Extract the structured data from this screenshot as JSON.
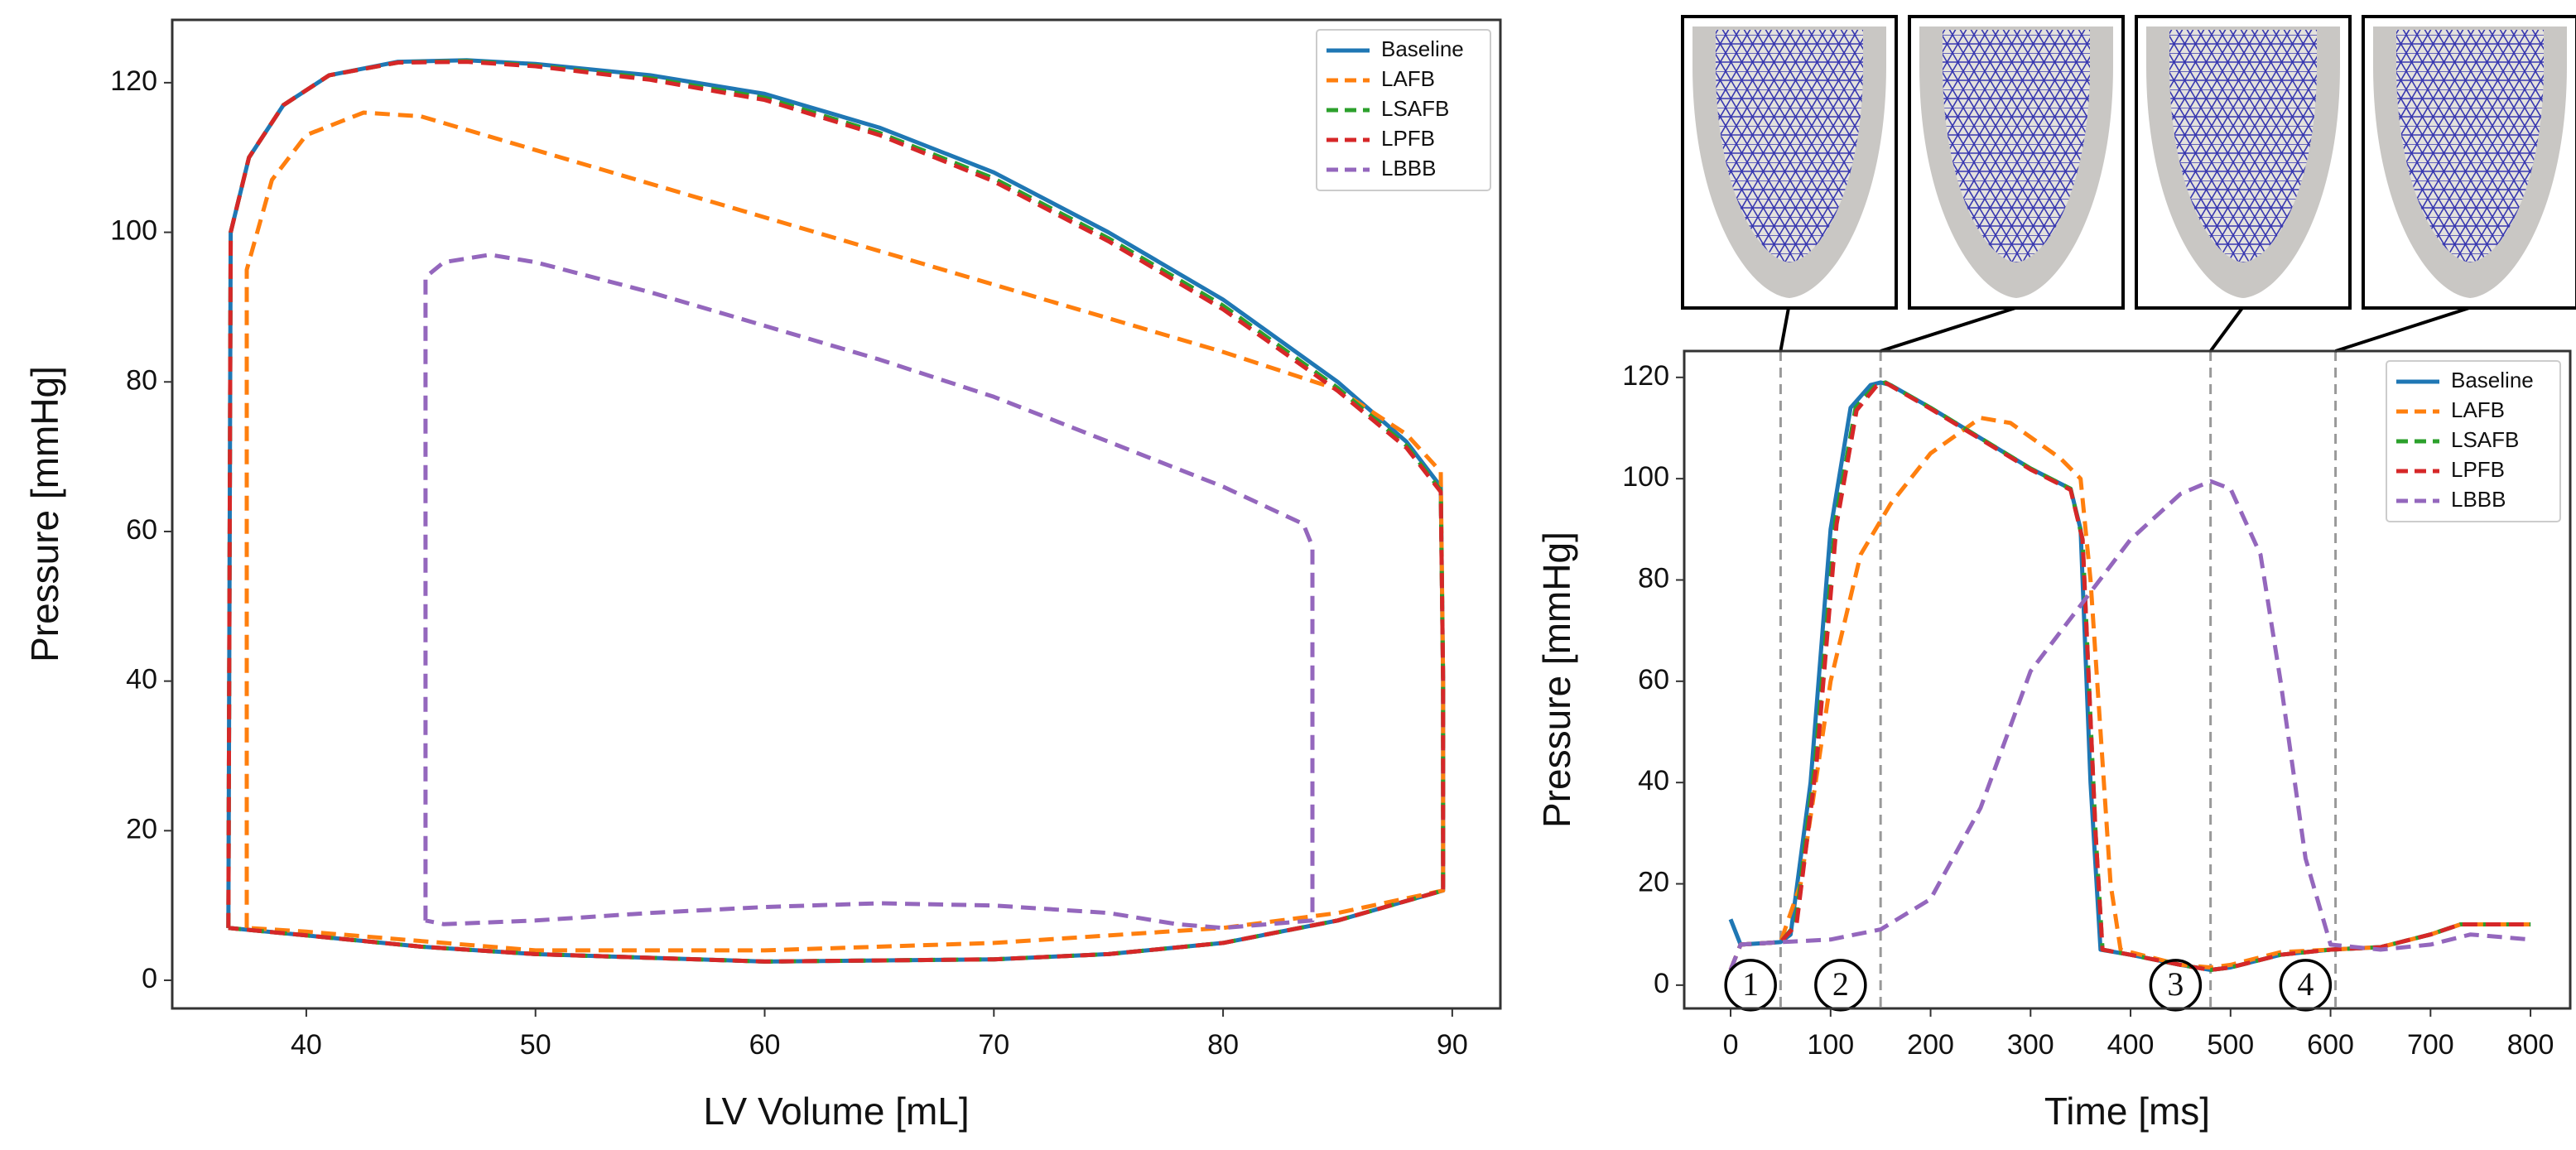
{
  "chart_data": [
    {
      "type": "line",
      "xlabel": "LV Volume [mL]",
      "ylabel": "Pressure [mmHg]",
      "xlim": [
        34.15,
        92.1
      ],
      "ylim": [
        -3.76,
        128.4
      ],
      "xticks": [
        40,
        50,
        60,
        70,
        80,
        90
      ],
      "yticks": [
        0,
        20,
        40,
        60,
        80,
        100,
        120
      ],
      "legend": "upper right",
      "series": [
        {
          "name": "Baseline",
          "color": "#1f77b4",
          "linestyle": "solid",
          "x": [
            36.6,
            36.7,
            37.5,
            39,
            41,
            44,
            47,
            50,
            55,
            60,
            65,
            70,
            75,
            80,
            85,
            88,
            89.5,
            89.6,
            89.6,
            85,
            80,
            75,
            70,
            60,
            50,
            45,
            40,
            36.6
          ],
          "values": [
            7,
            100,
            110,
            117,
            121,
            122.8,
            123,
            122.5,
            121,
            118.5,
            114,
            108,
            100,
            91,
            80,
            72,
            66,
            40,
            12,
            8,
            5,
            3.5,
            2.8,
            2.5,
            3.5,
            4.5,
            6,
            7
          ]
        },
        {
          "name": "LAFB",
          "color": "#ff7f0e",
          "linestyle": "dashed",
          "x": [
            37.4,
            37.4,
            38.5,
            40,
            42.5,
            45,
            50,
            60,
            70,
            80,
            85,
            88,
            89.5,
            89.6,
            89.6,
            85,
            80,
            70,
            60,
            50,
            40,
            37.4
          ],
          "values": [
            7,
            95,
            107,
            113,
            116,
            115.5,
            111,
            102,
            93,
            84,
            79,
            73,
            68,
            40,
            12,
            9,
            7,
            5,
            4,
            4,
            6.5,
            7
          ]
        },
        {
          "name": "LSAFB",
          "color": "#2ca02c",
          "linestyle": "dashed",
          "x": [
            36.6,
            36.7,
            37.5,
            39,
            41,
            44,
            47,
            50,
            55,
            60,
            65,
            70,
            75,
            80,
            85,
            88,
            89.5,
            89.6,
            89.6,
            85,
            80,
            75,
            70,
            60,
            50,
            45,
            40,
            36.6
          ],
          "values": [
            7,
            100,
            110,
            117,
            121,
            122.7,
            122.9,
            122.3,
            120.6,
            118,
            113.3,
            107.2,
            99.2,
            90.2,
            79.2,
            71.5,
            65.5,
            40,
            12,
            8,
            5,
            3.5,
            2.8,
            2.5,
            3.5,
            4.5,
            6,
            7
          ]
        },
        {
          "name": "LPFB",
          "color": "#d62728",
          "linestyle": "dashed",
          "x": [
            36.6,
            36.7,
            37.5,
            39,
            41,
            44,
            47,
            50,
            55,
            60,
            65,
            70,
            75,
            80,
            85,
            88,
            89.5,
            89.6,
            89.6,
            85,
            80,
            75,
            70,
            60,
            50,
            45,
            40,
            36.6
          ],
          "values": [
            7,
            100,
            110,
            117,
            121,
            122.7,
            122.8,
            122.2,
            120.4,
            117.7,
            113,
            106.8,
            98.8,
            89.7,
            78.8,
            71.2,
            65.3,
            40,
            12,
            8,
            5,
            3.5,
            2.8,
            2.5,
            3.5,
            4.5,
            6,
            7
          ]
        },
        {
          "name": "LBBB",
          "color": "#9467bd",
          "linestyle": "dashed",
          "x": [
            45.2,
            45.2,
            46,
            48,
            50,
            55,
            60,
            65,
            70,
            75,
            80,
            83.5,
            83.9,
            83.9,
            80,
            78,
            75,
            70,
            65,
            60,
            55,
            50,
            46,
            45.2
          ],
          "values": [
            8,
            94,
            96,
            97,
            96,
            92,
            87.5,
            83,
            78,
            72,
            66,
            61,
            58,
            8,
            7,
            7.5,
            9,
            10,
            10.3,
            9.8,
            9,
            8,
            7.5,
            8
          ]
        }
      ]
    },
    {
      "type": "line",
      "xlabel": "Time [ms]",
      "ylabel": "Pressure [mmHg]",
      "xlim": [
        -46.4,
        839.7
      ],
      "ylim": [
        -4.6,
        125.2
      ],
      "xticks": [
        0,
        100,
        200,
        300,
        400,
        500,
        600,
        700,
        800
      ],
      "yticks": [
        0,
        20,
        40,
        60,
        80,
        100,
        120
      ],
      "legend": "upper right",
      "vlines": [
        50,
        150,
        480,
        605
      ],
      "annotations": [
        {
          "text": "1",
          "x": 20,
          "y": 0
        },
        {
          "text": "2",
          "x": 110,
          "y": 0
        },
        {
          "text": "3",
          "x": 445,
          "y": 0
        },
        {
          "text": "4",
          "x": 575,
          "y": 0
        }
      ],
      "series": [
        {
          "name": "Baseline",
          "color": "#1f77b4",
          "linestyle": "solid",
          "x": [
            0,
            10,
            50,
            60,
            80,
            100,
            120,
            140,
            150,
            160,
            200,
            250,
            300,
            340,
            350,
            360,
            370,
            400,
            450,
            480,
            500,
            550,
            600,
            650,
            700,
            730,
            800
          ],
          "values": [
            13,
            8,
            8.5,
            10,
            40,
            90,
            114,
            118.5,
            119,
            118.5,
            114,
            108,
            102,
            98,
            90,
            40,
            7,
            6,
            4,
            3,
            3.5,
            6,
            7,
            7.5,
            10,
            12,
            12
          ]
        },
        {
          "name": "LAFB",
          "color": "#ff7f0e",
          "linestyle": "dashed",
          "x": [
            0,
            10,
            50,
            70,
            100,
            130,
            160,
            200,
            250,
            280,
            330,
            350,
            360,
            380,
            390,
            450,
            480,
            500,
            550,
            600,
            650,
            700,
            730,
            800
          ],
          "values": [
            3,
            8,
            8.5,
            20,
            60,
            85,
            95,
            105,
            112,
            111,
            104,
            100,
            80,
            20,
            7,
            4,
            3.5,
            4,
            6.5,
            7,
            7.5,
            10,
            12,
            12
          ]
        },
        {
          "name": "LSAFB",
          "color": "#2ca02c",
          "linestyle": "dashed",
          "x": [
            0,
            10,
            50,
            65,
            85,
            105,
            125,
            145,
            155,
            200,
            250,
            300,
            340,
            352,
            365,
            372,
            400,
            450,
            480,
            500,
            550,
            600,
            650,
            700,
            730,
            800
          ],
          "values": [
            3,
            8,
            8.5,
            12,
            45,
            92,
            114,
            118.5,
            119,
            114,
            108,
            102,
            98,
            88,
            30,
            7,
            6,
            4,
            3,
            3.5,
            6,
            7,
            7.5,
            10,
            12,
            12
          ]
        },
        {
          "name": "LPFB",
          "color": "#d62728",
          "linestyle": "dashed",
          "x": [
            0,
            10,
            50,
            66,
            86,
            106,
            126,
            146,
            156,
            200,
            250,
            300,
            340,
            352,
            365,
            372,
            400,
            450,
            480,
            500,
            550,
            600,
            650,
            700,
            730,
            800
          ],
          "values": [
            3,
            8,
            8.5,
            12,
            44,
            91,
            113.5,
            118.3,
            118.8,
            113.8,
            107.8,
            101.8,
            97.8,
            88,
            30,
            7,
            6,
            4,
            3,
            3.5,
            6,
            7,
            7.5,
            10,
            12,
            12
          ]
        },
        {
          "name": "LBBB",
          "color": "#9467bd",
          "linestyle": "dashed",
          "x": [
            0,
            10,
            50,
            100,
            150,
            200,
            250,
            300,
            350,
            400,
            450,
            480,
            500,
            530,
            550,
            575,
            600,
            650,
            700,
            740,
            800
          ],
          "values": [
            3,
            8,
            8.5,
            9,
            11,
            17,
            35,
            62,
            75,
            88,
            97,
            99.5,
            98,
            85,
            60,
            25,
            8,
            7,
            8,
            10,
            9
          ]
        }
      ]
    }
  ]
}
